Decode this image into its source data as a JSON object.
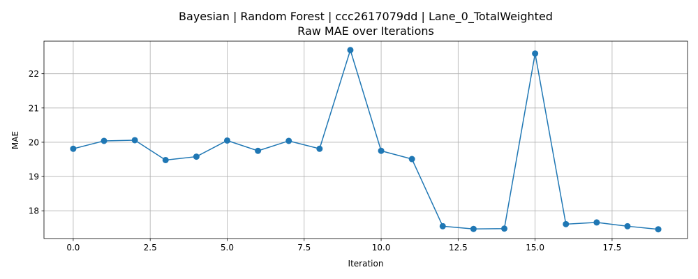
{
  "chart_data": {
    "type": "line",
    "title_line1": "Bayesian | Random Forest | ccc2617079dd | Lane_0_TotalWeighted",
    "title_line2": "Raw MAE over Iterations",
    "xlabel": "Iteration",
    "ylabel": "MAE",
    "xlim": [
      -0.95,
      19.95
    ],
    "ylim": [
      17.19,
      22.95
    ],
    "xticks": [
      0.0,
      2.5,
      5.0,
      7.5,
      10.0,
      12.5,
      15.0,
      17.5
    ],
    "xtick_labels": [
      "0.0",
      "2.5",
      "5.0",
      "7.5",
      "10.0",
      "12.5",
      "15.0",
      "17.5"
    ],
    "yticks": [
      18,
      19,
      20,
      21,
      22
    ],
    "ytick_labels": [
      "18",
      "19",
      "20",
      "21",
      "22"
    ],
    "grid": true,
    "color": "#1f77b4",
    "x": [
      0,
      1,
      2,
      3,
      4,
      5,
      6,
      7,
      8,
      9,
      10,
      11,
      12,
      13,
      14,
      15,
      16,
      17,
      18,
      19
    ],
    "y": [
      19.81,
      20.04,
      20.06,
      19.48,
      19.58,
      20.05,
      19.75,
      20.04,
      19.81,
      22.69,
      19.75,
      19.51,
      17.55,
      17.47,
      17.48,
      22.59,
      17.61,
      17.66,
      17.55,
      17.46
    ]
  }
}
